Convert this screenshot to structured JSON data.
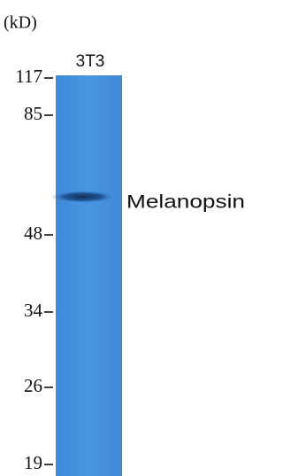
{
  "unit_label": "(kD)",
  "lane_label": "3T3",
  "markers": [
    "117",
    "85",
    "48",
    "34",
    "26",
    "19"
  ],
  "band_label": "Melanopsin"
}
